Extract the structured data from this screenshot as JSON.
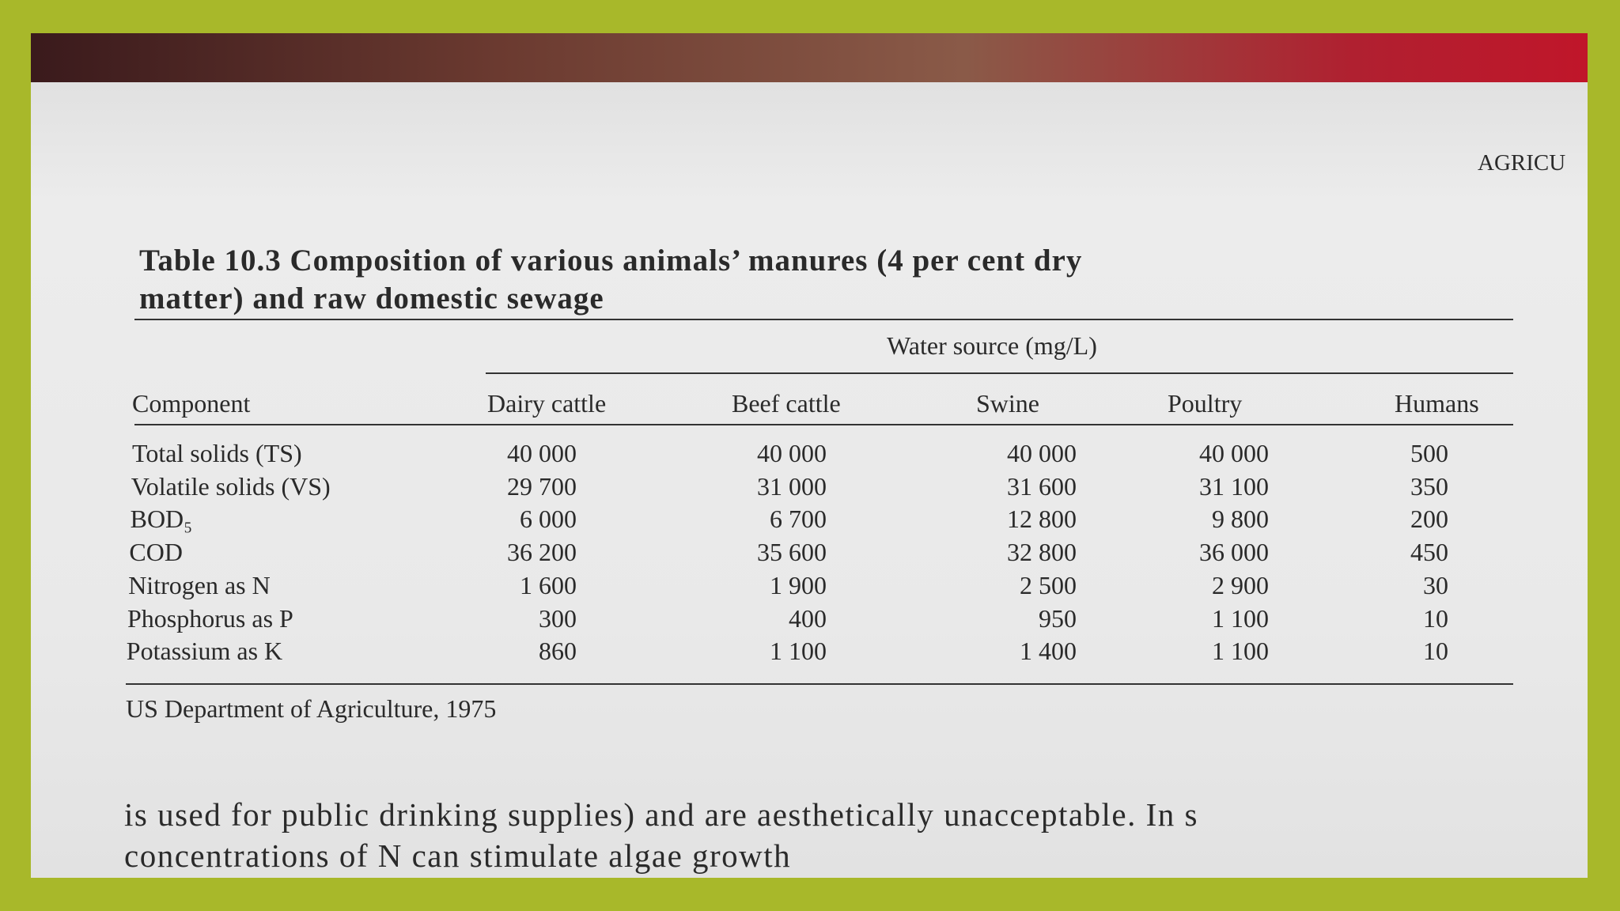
{
  "header": {
    "running_head": "AGRICU"
  },
  "table": {
    "title_line1": "Table 10.3  Composition of various animals’ manures (4 per cent dry",
    "title_line2": "matter) and raw domestic sewage",
    "group_header": "Water source (mg/L)",
    "columns": [
      "Component",
      "Dairy cattle",
      "Beef cattle",
      "Swine",
      "Poultry",
      "Humans"
    ],
    "rows": [
      [
        "Total solids (TS)",
        "40 000",
        "40 000",
        "40 000",
        "40 000",
        "500"
      ],
      [
        "Volatile solids (VS)",
        "29 700",
        "31 000",
        "31 600",
        "31 100",
        "350"
      ],
      [
        "BOD₅",
        "6 000",
        "6 700",
        "12 800",
        "9 800",
        "200"
      ],
      [
        "COD",
        "36 200",
        "35 600",
        "32 800",
        "36 000",
        "450"
      ],
      [
        "Nitrogen as N",
        "1 600",
        "1 900",
        "2 500",
        "2 900",
        "30"
      ],
      [
        "Phosphorus as P",
        "300",
        "400",
        "950",
        "1 100",
        "10"
      ],
      [
        "Potassium as K",
        "860",
        "1 100",
        "1 400",
        "1 100",
        "10"
      ]
    ],
    "source": "US Department of Agriculture, 1975"
  },
  "body": {
    "lines": [
      "is used for public drinking supplies) and are aesthetically unacceptable. In s",
      "concentrations of N can stimulate algae growth"
    ]
  }
}
